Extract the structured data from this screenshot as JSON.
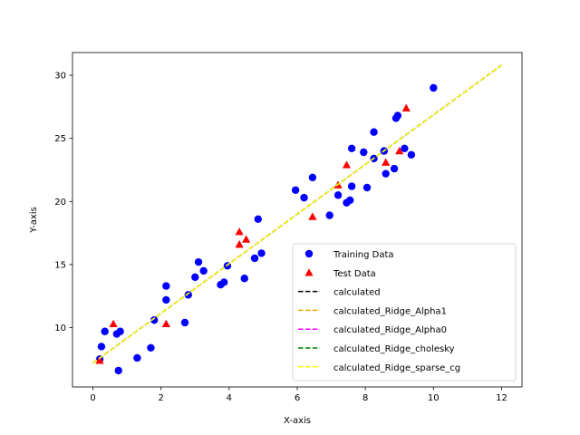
{
  "chart_data": {
    "type": "scatter",
    "xlabel": "X-axis",
    "ylabel": "Y-axis",
    "xlim": [
      -0.6,
      12.6
    ],
    "ylim": [
      5.3,
      31.8
    ],
    "x_ticks": [
      0,
      2,
      4,
      6,
      8,
      10,
      12
    ],
    "y_ticks": [
      10,
      15,
      20,
      25,
      30
    ],
    "grid": false,
    "legend_position": "lower-right",
    "series": [
      {
        "name": "Training Data",
        "kind": "scatter",
        "marker": "circle",
        "color": "#0000ff",
        "points": [
          [
            0.2,
            7.5
          ],
          [
            0.25,
            8.5
          ],
          [
            0.35,
            9.7
          ],
          [
            0.7,
            9.5
          ],
          [
            0.8,
            9.7
          ],
          [
            0.75,
            6.6
          ],
          [
            1.3,
            7.6
          ],
          [
            1.7,
            8.4
          ],
          [
            1.8,
            10.6
          ],
          [
            2.15,
            12.2
          ],
          [
            2.15,
            13.3
          ],
          [
            2.7,
            10.4
          ],
          [
            2.8,
            12.6
          ],
          [
            3.0,
            14.0
          ],
          [
            3.1,
            15.2
          ],
          [
            3.25,
            14.5
          ],
          [
            3.75,
            13.4
          ],
          [
            3.85,
            13.6
          ],
          [
            3.95,
            14.9
          ],
          [
            4.45,
            13.9
          ],
          [
            4.75,
            15.5
          ],
          [
            4.85,
            18.6
          ],
          [
            4.95,
            15.9
          ],
          [
            5.95,
            20.9
          ],
          [
            6.2,
            20.3
          ],
          [
            6.45,
            21.9
          ],
          [
            6.95,
            18.9
          ],
          [
            7.2,
            20.5
          ],
          [
            7.45,
            19.9
          ],
          [
            7.55,
            20.1
          ],
          [
            7.6,
            21.2
          ],
          [
            7.6,
            24.2
          ],
          [
            7.95,
            23.9
          ],
          [
            8.05,
            21.1
          ],
          [
            8.25,
            25.5
          ],
          [
            8.25,
            23.4
          ],
          [
            8.55,
            24.0
          ],
          [
            8.6,
            22.2
          ],
          [
            8.85,
            22.6
          ],
          [
            8.9,
            26.6
          ],
          [
            8.95,
            26.8
          ],
          [
            9.15,
            24.2
          ],
          [
            9.35,
            23.7
          ],
          [
            10.0,
            29.0
          ]
        ]
      },
      {
        "name": "Test Data",
        "kind": "scatter",
        "marker": "triangle",
        "color": "#ff0000",
        "points": [
          [
            0.2,
            7.4
          ],
          [
            0.6,
            10.3
          ],
          [
            2.15,
            10.3
          ],
          [
            4.3,
            17.6
          ],
          [
            4.3,
            16.6
          ],
          [
            4.5,
            17.0
          ],
          [
            6.45,
            18.8
          ],
          [
            7.2,
            21.3
          ],
          [
            7.45,
            22.9
          ],
          [
            8.6,
            23.1
          ],
          [
            9.0,
            24.0
          ],
          [
            9.2,
            27.4
          ]
        ]
      },
      {
        "name": "calculated",
        "kind": "line",
        "dash": true,
        "color": "#000000",
        "x": [
          0,
          12
        ],
        "y": [
          7.2,
          30.8
        ]
      },
      {
        "name": "calculated_Ridge_Alpha1",
        "kind": "line",
        "dash": true,
        "color": "#ffa500",
        "x": [
          0,
          12
        ],
        "y": [
          7.2,
          30.8
        ]
      },
      {
        "name": "calculated_Ridge_Alpha0",
        "kind": "line",
        "dash": true,
        "color": "#ff00ff",
        "x": [
          0,
          12
        ],
        "y": [
          7.2,
          30.8
        ]
      },
      {
        "name": "calculated_Ridge_cholesky",
        "kind": "line",
        "dash": true,
        "color": "#008000",
        "x": [
          0,
          12
        ],
        "y": [
          7.2,
          30.8
        ]
      },
      {
        "name": "calculated_Ridge_sparse_cg",
        "kind": "line",
        "dash": true,
        "color": "#ffff00",
        "x": [
          0,
          12
        ],
        "y": [
          7.2,
          30.8
        ]
      }
    ]
  }
}
